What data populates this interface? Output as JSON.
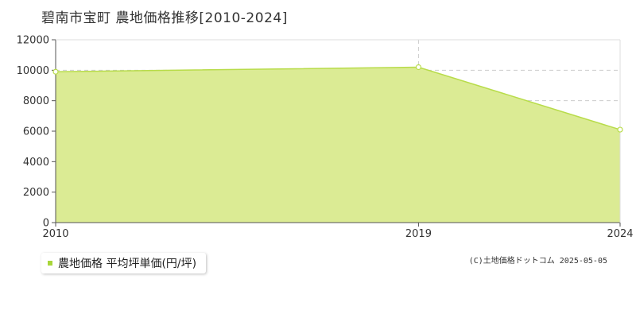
{
  "title": "碧南市宝町 農地価格推移[2010-2024]",
  "legend": {
    "label": "農地価格 平均坪単価(円/坪)"
  },
  "copyright": "(C)土地価格ドットコム 2025-05-05",
  "colors": {
    "fill": "#dbeb94",
    "line": "#b8dc4a",
    "point": "#ffffff",
    "grid": "#cccccc",
    "swatch": "#a8d63a"
  },
  "chart_data": {
    "type": "area",
    "x": [
      2010,
      2019,
      2024
    ],
    "x_tick_labels": [
      "2010",
      "2019",
      "2024"
    ],
    "series": [
      {
        "name": "農地価格 平均坪単価(円/坪)",
        "values": [
          9900,
          10200,
          6100
        ]
      }
    ],
    "ylim": [
      0,
      12000
    ],
    "y_ticks": [
      0,
      2000,
      4000,
      6000,
      8000,
      10000,
      12000
    ],
    "y_tick_labels": [
      "0",
      "2000",
      "4000",
      "6000",
      "8000",
      "10000",
      "12000"
    ],
    "grid": true,
    "legend_position": "bottom-left"
  }
}
